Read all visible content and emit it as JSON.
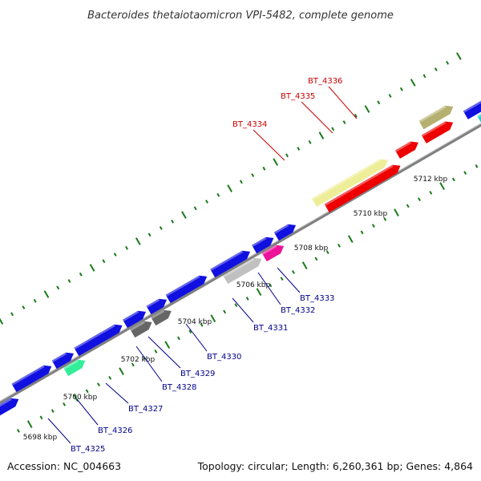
{
  "title": "Bacteroides thetaiotaomicron VPI-5482, complete genome",
  "accession": "Accession: NC_004663",
  "summary": "Topology: circular; Length: 6,260,361 bp; Genes: 4,864",
  "colors": {
    "forward_cds": "#1010e0",
    "highlight": "#ee0000",
    "backbone": "#808080",
    "ticks": "#1a7a1a",
    "label_normal": "#00008b",
    "label_highlight": "#cc0000"
  },
  "kbp_labels": [
    "5698 kbp",
    "5700 kbp",
    "5702 kbp",
    "5704 kbp",
    "5706 kbp",
    "5708 kbp",
    "5710 kbp",
    "5712 kbp"
  ],
  "gene_labels": [
    {
      "text": "BT_4325",
      "highlight": false
    },
    {
      "text": "BT_4326",
      "highlight": false
    },
    {
      "text": "BT_4327",
      "highlight": false
    },
    {
      "text": "BT_4328",
      "highlight": false
    },
    {
      "text": "BT_4329",
      "highlight": false
    },
    {
      "text": "BT_4330",
      "highlight": false
    },
    {
      "text": "BT_4331",
      "highlight": false
    },
    {
      "text": "BT_4332",
      "highlight": false
    },
    {
      "text": "BT_4333",
      "highlight": false
    },
    {
      "text": "BT_4334",
      "highlight": true
    },
    {
      "text": "BT_4335",
      "highlight": true
    },
    {
      "text": "BT_4336",
      "highlight": true
    }
  ]
}
